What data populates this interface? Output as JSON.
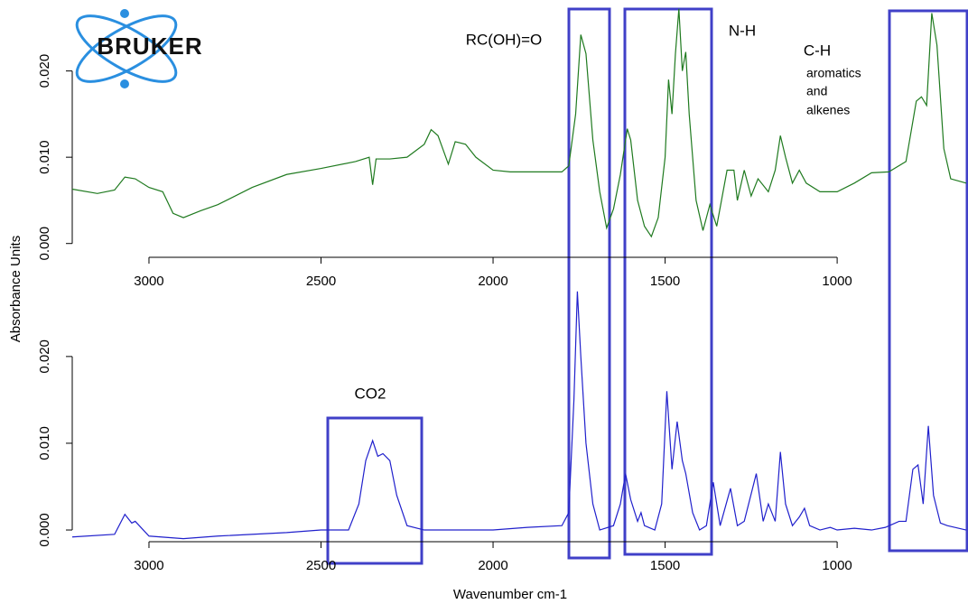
{
  "logo": "BRUKER",
  "chart_data": [
    {
      "type": "line",
      "ylabel": "Absorbance Units",
      "annotations": [
        "RC(OH)=O",
        "N-H",
        "C-H",
        "aromatics",
        "and",
        "alkenes"
      ],
      "xlim": [
        3223,
        625
      ],
      "ylim": [
        -0.0016,
        0.0277
      ],
      "xticks": [
        3000,
        2500,
        2000,
        1500,
        1000
      ],
      "yticks": [
        {
          "value": 0,
          "label": "0.000"
        },
        {
          "value": 0.01,
          "label": "0.010"
        },
        {
          "value": 0.02,
          "label": "0.020"
        }
      ],
      "x": [
        3223,
        3150,
        3100,
        3070,
        3040,
        3000,
        2960,
        2930,
        2900,
        2850,
        2800,
        2700,
        2600,
        2500,
        2400,
        2360,
        2350,
        2340,
        2300,
        2250,
        2200,
        2180,
        2160,
        2130,
        2110,
        2080,
        2050,
        2000,
        1950,
        1900,
        1850,
        1800,
        1780,
        1760,
        1745,
        1730,
        1710,
        1690,
        1670,
        1650,
        1630,
        1610,
        1600,
        1580,
        1560,
        1540,
        1520,
        1500,
        1490,
        1480,
        1470,
        1460,
        1450,
        1440,
        1430,
        1410,
        1390,
        1370,
        1350,
        1320,
        1300,
        1290,
        1270,
        1250,
        1230,
        1200,
        1180,
        1165,
        1150,
        1130,
        1110,
        1090,
        1050,
        1000,
        950,
        900,
        850,
        800,
        770,
        755,
        740,
        725,
        710,
        690,
        670,
        625
      ],
      "series": [
        {
          "color": "#1f7a1f",
          "values": [
            0.0063,
            0.0058,
            0.0062,
            0.0077,
            0.0075,
            0.0065,
            0.006,
            0.0035,
            0.003,
            0.0038,
            0.0045,
            0.0065,
            0.008,
            0.0087,
            0.0095,
            0.01,
            0.0068,
            0.0098,
            0.0098,
            0.01,
            0.0115,
            0.0132,
            0.0125,
            0.0092,
            0.0118,
            0.0115,
            0.01,
            0.0085,
            0.0083,
            0.0083,
            0.0083,
            0.0083,
            0.009,
            0.015,
            0.0242,
            0.022,
            0.012,
            0.006,
            0.0018,
            0.004,
            0.008,
            0.0133,
            0.012,
            0.005,
            0.002,
            0.0008,
            0.003,
            0.01,
            0.019,
            0.015,
            0.022,
            0.0272,
            0.02,
            0.0222,
            0.015,
            0.005,
            0.0015,
            0.0045,
            0.002,
            0.0085,
            0.0085,
            0.005,
            0.0085,
            0.0055,
            0.0075,
            0.006,
            0.0085,
            0.0125,
            0.01,
            0.007,
            0.0085,
            0.007,
            0.006,
            0.006,
            0.007,
            0.0082,
            0.0083,
            0.0095,
            0.0165,
            0.017,
            0.016,
            0.0267,
            0.023,
            0.011,
            0.0075,
            0.007
          ]
        }
      ]
    },
    {
      "type": "line",
      "xlabel": "Wavenumber cm-1",
      "annotations": [
        "CO2"
      ],
      "xlim": [
        3223,
        625
      ],
      "ylim": [
        -0.00135,
        0.028
      ],
      "xticks": [
        3000,
        2500,
        2000,
        1500,
        1000
      ],
      "yticks": [
        {
          "value": 0,
          "label": "0.000"
        },
        {
          "value": 0.01,
          "label": "0.010"
        },
        {
          "value": 0.02,
          "label": "0.020"
        }
      ],
      "x": [
        3223,
        3100,
        3070,
        3050,
        3040,
        3000,
        2900,
        2800,
        2600,
        2500,
        2420,
        2390,
        2370,
        2350,
        2335,
        2320,
        2300,
        2280,
        2250,
        2200,
        2000,
        1900,
        1800,
        1780,
        1765,
        1755,
        1745,
        1730,
        1710,
        1690,
        1650,
        1630,
        1615,
        1600,
        1580,
        1570,
        1560,
        1530,
        1510,
        1495,
        1480,
        1465,
        1450,
        1440,
        1420,
        1400,
        1380,
        1360,
        1340,
        1310,
        1290,
        1270,
        1235,
        1215,
        1200,
        1180,
        1165,
        1150,
        1130,
        1110,
        1095,
        1080,
        1050,
        1020,
        1000,
        950,
        900,
        860,
        820,
        800,
        780,
        765,
        750,
        735,
        720,
        700,
        680,
        625
      ],
      "series": [
        {
          "color": "#2020cc",
          "values": [
            -0.0008,
            -0.0005,
            0.0018,
            0.0008,
            0.001,
            -0.0007,
            -0.001,
            -0.0007,
            -0.0003,
            0,
            0,
            0.003,
            0.008,
            0.0103,
            0.0085,
            0.0088,
            0.008,
            0.004,
            0.0005,
            0,
            0,
            0.0003,
            0.0005,
            0.002,
            0.015,
            0.0275,
            0.02,
            0.01,
            0.003,
            0,
            0.0005,
            0.003,
            0.0065,
            0.0035,
            0.001,
            0.002,
            0.0005,
            0,
            0.003,
            0.016,
            0.007,
            0.0125,
            0.008,
            0.0065,
            0.002,
            0,
            0.0005,
            0.0055,
            0.0005,
            0.0048,
            0.0005,
            0.001,
            0.0065,
            0.001,
            0.003,
            0.001,
            0.009,
            0.003,
            0.0005,
            0.0015,
            0.0025,
            0.0005,
            0,
            0.0003,
            0,
            0.0002,
            0,
            0.0003,
            0.001,
            0.001,
            0.007,
            0.0075,
            0.003,
            0.012,
            0.004,
            0.0008,
            0.0005,
            0
          ]
        }
      ]
    }
  ]
}
